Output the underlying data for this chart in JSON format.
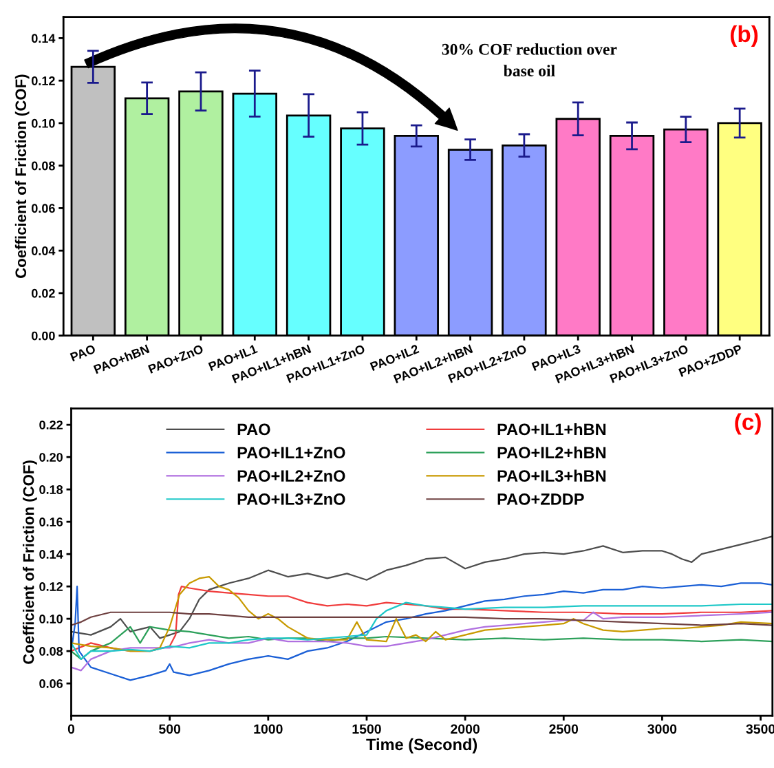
{
  "chart_data": [
    {
      "type": "bar",
      "ylabel": "Coefficient of Friction (COF)",
      "categories": [
        "PAO",
        "PAO+hBN",
        "PAO+ZnO",
        "PAO+IL1",
        "PAO+IL1+hBN",
        "PAO+IL1+ZnO",
        "PAO+IL2",
        "PAO+IL2+hBN",
        "PAO+IL2+ZnO",
        "PAO+IL3",
        "PAO+IL3+hBN",
        "PAO+IL3+ZnO",
        "PAO+ZDDP"
      ],
      "values": [
        0.1265,
        0.1117,
        0.1149,
        0.1139,
        0.1036,
        0.0975,
        0.094,
        0.0875,
        0.0895,
        0.102,
        0.094,
        0.097,
        0.1
      ],
      "errors": [
        0.0075,
        0.0074,
        0.009,
        0.0108,
        0.01,
        0.0076,
        0.005,
        0.0048,
        0.0053,
        0.0077,
        0.0063,
        0.006,
        0.0068
      ],
      "colors": [
        "#c0c0c0",
        "#b0f0a0",
        "#b0f0a0",
        "#66ffff",
        "#66ffff",
        "#66ffff",
        "#8c9cff",
        "#8c9cff",
        "#8c9cff",
        "#ff7ac6",
        "#ff7ac6",
        "#ff7ac6",
        "#ffff80"
      ],
      "ylim": [
        0,
        0.15
      ],
      "yticks": [
        {
          "value": 0,
          "label": "0.00"
        },
        0.02,
        0.04,
        0.06,
        0.08,
        {
          "value": 0.1,
          "label": "0.10"
        },
        0.12,
        0.14
      ],
      "grid": false,
      "annotations": [
        "(b)",
        "30% COF reduction over\nbase oil"
      ]
    },
    {
      "type": "line",
      "xlabel": "Time (Second)",
      "ylabel": "Coefficient of Friction (COF)",
      "xlim": [
        0,
        3560
      ],
      "xticks": [
        0,
        500,
        1000,
        1500,
        2000,
        2500,
        3000,
        3500
      ],
      "ylim": [
        0.04,
        0.23
      ],
      "yticks": [
        0.06,
        0.08,
        {
          "value": 0.1,
          "label": "0.10"
        },
        0.12,
        0.14,
        0.16,
        0.18,
        {
          "value": 0.2,
          "label": "0.20"
        },
        0.22
      ],
      "grid": false,
      "legend": "top",
      "marker": "none",
      "line_style": "solid",
      "annotations": [
        "(c)"
      ],
      "series": [
        {
          "name": "PAO",
          "color": "#4d4d4d",
          "x": [
            0,
            100,
            200,
            250,
            300,
            400,
            450,
            500,
            550,
            600,
            650,
            700,
            750,
            800,
            900,
            1000,
            1100,
            1200,
            1300,
            1400,
            1500,
            1600,
            1700,
            1800,
            1900,
            2000,
            2100,
            2200,
            2300,
            2400,
            2500,
            2600,
            2700,
            2800,
            2900,
            3000,
            3050,
            3100,
            3150,
            3200,
            3300,
            3400,
            3500,
            3560
          ],
          "values": [
            0.092,
            0.09,
            0.095,
            0.1,
            0.092,
            0.095,
            0.088,
            0.09,
            0.092,
            0.1,
            0.112,
            0.118,
            0.12,
            0.122,
            0.125,
            0.13,
            0.126,
            0.128,
            0.125,
            0.128,
            0.124,
            0.13,
            0.133,
            0.137,
            0.138,
            0.131,
            0.135,
            0.137,
            0.14,
            0.141,
            0.14,
            0.142,
            0.145,
            0.141,
            0.142,
            0.142,
            0.14,
            0.137,
            0.135,
            0.14,
            0.143,
            0.146,
            0.149,
            0.151
          ]
        },
        {
          "name": "PAO+IL1+hBN",
          "color": "#f03c3c",
          "x": [
            0,
            100,
            200,
            300,
            400,
            500,
            530,
            545,
            560,
            600,
            700,
            800,
            900,
            1000,
            1100,
            1200,
            1300,
            1400,
            1500,
            1600,
            1700,
            1800,
            1900,
            2000,
            2200,
            2400,
            2600,
            2800,
            3000,
            3200,
            3400,
            3560
          ],
          "values": [
            0.08,
            0.085,
            0.082,
            0.08,
            0.08,
            0.083,
            0.09,
            0.115,
            0.12,
            0.119,
            0.117,
            0.116,
            0.115,
            0.114,
            0.114,
            0.11,
            0.108,
            0.109,
            0.108,
            0.11,
            0.109,
            0.108,
            0.106,
            0.106,
            0.105,
            0.104,
            0.104,
            0.103,
            0.103,
            0.104,
            0.104,
            0.105
          ]
        },
        {
          "name": "PAO+IL1+ZnO",
          "color": "#1a5fd6",
          "x": [
            0,
            20,
            30,
            40,
            100,
            200,
            300,
            400,
            480,
            500,
            520,
            600,
            700,
            800,
            900,
            1000,
            1100,
            1200,
            1300,
            1400,
            1500,
            1600,
            1700,
            1800,
            1900,
            2000,
            2100,
            2200,
            2300,
            2400,
            2500,
            2600,
            2700,
            2800,
            2900,
            3000,
            3100,
            3200,
            3300,
            3400,
            3500,
            3560
          ],
          "values": [
            0.08,
            0.097,
            0.12,
            0.08,
            0.07,
            0.066,
            0.062,
            0.065,
            0.068,
            0.072,
            0.067,
            0.065,
            0.068,
            0.072,
            0.075,
            0.077,
            0.075,
            0.08,
            0.082,
            0.086,
            0.092,
            0.098,
            0.1,
            0.103,
            0.105,
            0.108,
            0.111,
            0.112,
            0.114,
            0.115,
            0.117,
            0.116,
            0.118,
            0.118,
            0.12,
            0.119,
            0.12,
            0.121,
            0.12,
            0.122,
            0.122,
            0.121
          ]
        },
        {
          "name": "PAO+IL2+hBN",
          "color": "#2ca05a",
          "x": [
            0,
            50,
            100,
            200,
            300,
            350,
            400,
            500,
            600,
            700,
            800,
            900,
            1000,
            1100,
            1200,
            1300,
            1400,
            1500,
            1600,
            1800,
            2000,
            2200,
            2400,
            2600,
            2800,
            3000,
            3200,
            3400,
            3560
          ],
          "values": [
            0.08,
            0.075,
            0.08,
            0.085,
            0.095,
            0.085,
            0.095,
            0.093,
            0.092,
            0.09,
            0.088,
            0.089,
            0.087,
            0.088,
            0.088,
            0.086,
            0.088,
            0.088,
            0.089,
            0.088,
            0.087,
            0.088,
            0.087,
            0.088,
            0.087,
            0.087,
            0.086,
            0.087,
            0.086
          ]
        },
        {
          "name": "PAO+IL2+ZnO",
          "color": "#b070e0",
          "x": [
            0,
            50,
            100,
            200,
            300,
            400,
            500,
            600,
            700,
            800,
            900,
            1000,
            1100,
            1200,
            1300,
            1400,
            1500,
            1600,
            1700,
            1800,
            1900,
            2000,
            2100,
            2200,
            2300,
            2400,
            2500,
            2600,
            2650,
            2700,
            2800,
            3000,
            3200,
            3400,
            3560
          ],
          "values": [
            0.07,
            0.068,
            0.075,
            0.08,
            0.082,
            0.082,
            0.082,
            0.085,
            0.087,
            0.085,
            0.085,
            0.088,
            0.086,
            0.086,
            0.086,
            0.085,
            0.083,
            0.083,
            0.085,
            0.087,
            0.09,
            0.093,
            0.095,
            0.096,
            0.097,
            0.098,
            0.099,
            0.099,
            0.104,
            0.1,
            0.101,
            0.101,
            0.102,
            0.103,
            0.104
          ]
        },
        {
          "name": "PAO+IL3+hBN",
          "color": "#c89a00",
          "x": [
            0,
            100,
            200,
            300,
            400,
            450,
            500,
            550,
            600,
            650,
            700,
            750,
            800,
            850,
            900,
            950,
            1000,
            1050,
            1100,
            1200,
            1300,
            1400,
            1450,
            1500,
            1600,
            1650,
            1700,
            1750,
            1800,
            1850,
            1900,
            2000,
            2100,
            2200,
            2300,
            2400,
            2500,
            2550,
            2600,
            2700,
            2800,
            2900,
            3000,
            3100,
            3200,
            3300,
            3400,
            3560
          ],
          "values": [
            0.085,
            0.083,
            0.082,
            0.08,
            0.08,
            0.082,
            0.095,
            0.115,
            0.122,
            0.125,
            0.126,
            0.12,
            0.118,
            0.113,
            0.105,
            0.1,
            0.103,
            0.1,
            0.095,
            0.088,
            0.087,
            0.087,
            0.098,
            0.087,
            0.086,
            0.1,
            0.088,
            0.09,
            0.086,
            0.092,
            0.087,
            0.09,
            0.093,
            0.094,
            0.095,
            0.096,
            0.097,
            0.1,
            0.097,
            0.093,
            0.092,
            0.093,
            0.094,
            0.094,
            0.095,
            0.096,
            0.098,
            0.097
          ]
        },
        {
          "name": "PAO+IL3+ZnO",
          "color": "#1ec8c8",
          "x": [
            0,
            50,
            100,
            200,
            300,
            400,
            500,
            600,
            700,
            800,
            900,
            1000,
            1100,
            1200,
            1300,
            1400,
            1500,
            1550,
            1600,
            1700,
            1800,
            1900,
            2000,
            2200,
            2400,
            2600,
            2800,
            3000,
            3200,
            3400,
            3560
          ],
          "values": [
            0.085,
            0.075,
            0.08,
            0.08,
            0.081,
            0.08,
            0.083,
            0.082,
            0.085,
            0.085,
            0.087,
            0.088,
            0.088,
            0.087,
            0.088,
            0.089,
            0.09,
            0.1,
            0.105,
            0.11,
            0.108,
            0.107,
            0.106,
            0.107,
            0.107,
            0.108,
            0.108,
            0.108,
            0.108,
            0.109,
            0.109
          ]
        },
        {
          "name": "PAO+ZDDP",
          "color": "#6e4040",
          "x": [
            0,
            50,
            100,
            200,
            300,
            400,
            500,
            600,
            700,
            800,
            900,
            1000,
            1200,
            1400,
            1600,
            1800,
            2000,
            2200,
            2400,
            2600,
            2800,
            3000,
            3200,
            3400,
            3560
          ],
          "values": [
            0.096,
            0.098,
            0.101,
            0.104,
            0.104,
            0.104,
            0.104,
            0.103,
            0.103,
            0.102,
            0.101,
            0.101,
            0.101,
            0.101,
            0.101,
            0.101,
            0.101,
            0.1,
            0.1,
            0.099,
            0.098,
            0.097,
            0.096,
            0.097,
            0.096
          ]
        }
      ]
    }
  ]
}
